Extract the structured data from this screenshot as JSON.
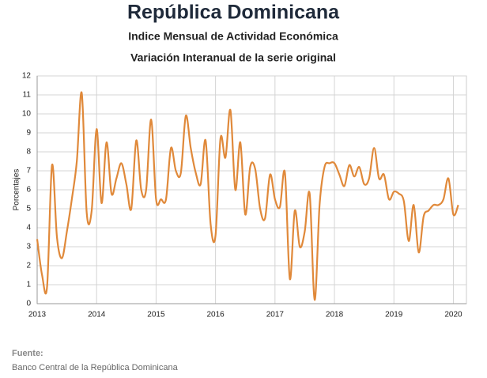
{
  "chart_data": {
    "type": "line",
    "title": "República Dominicana",
    "subtitle": "Indice Mensual de  Actividad Económica",
    "subtitle2": "Variación Interanual de la serie original",
    "y_label": "Porcentajes",
    "source_label": "Fuente:",
    "source": "Banco Central de la República Dominicana",
    "x": [
      2013,
      2013.083,
      2013.167,
      2013.25,
      2013.333,
      2013.417,
      2013.5,
      2013.583,
      2013.667,
      2013.75,
      2013.833,
      2013.917,
      2014,
      2014.083,
      2014.167,
      2014.25,
      2014.333,
      2014.417,
      2014.5,
      2014.583,
      2014.667,
      2014.75,
      2014.833,
      2014.917,
      2015,
      2015.083,
      2015.167,
      2015.25,
      2015.333,
      2015.417,
      2015.5,
      2015.583,
      2015.667,
      2015.75,
      2015.833,
      2015.917,
      2016,
      2016.083,
      2016.167,
      2016.25,
      2016.333,
      2016.417,
      2016.5,
      2016.583,
      2016.667,
      2016.75,
      2016.833,
      2016.917,
      2017,
      2017.083,
      2017.167,
      2017.25,
      2017.333,
      2017.417,
      2017.5,
      2017.583,
      2017.667,
      2017.75,
      2017.833,
      2017.917,
      2018,
      2018.083,
      2018.167,
      2018.25,
      2018.333,
      2018.417,
      2018.5,
      2018.583,
      2018.667,
      2018.75,
      2018.833,
      2018.917,
      2019,
      2019.083,
      2019.167,
      2019.25,
      2019.333,
      2019.417,
      2019.5,
      2019.583,
      2019.667,
      2019.75,
      2019.833,
      2019.917,
      2020,
      2020.083
    ],
    "series": [
      {
        "name": "Variación interanual",
        "color": "#e0893a",
        "values": [
          3.4,
          1.5,
          0.9,
          7.3,
          3.5,
          2.4,
          3.8,
          5.5,
          7.5,
          11.1,
          4.8,
          4.9,
          9.2,
          5.3,
          8.5,
          5.8,
          6.6,
          7.4,
          6.3,
          5.0,
          8.6,
          6.0,
          6.0,
          9.7,
          5.5,
          5.5,
          5.5,
          8.2,
          7.0,
          6.9,
          9.9,
          8.2,
          6.9,
          6.3,
          8.6,
          4.2,
          3.6,
          8.7,
          7.7,
          10.2,
          6.0,
          8.5,
          4.7,
          7.2,
          7.1,
          5.0,
          4.5,
          6.8,
          5.5,
          5.1,
          6.9,
          1.3,
          4.9,
          3.0,
          3.8,
          5.8,
          0.2,
          5.2,
          7.2,
          7.4,
          7.4,
          6.8,
          6.2,
          7.3,
          6.7,
          7.2,
          6.3,
          6.6,
          8.2,
          6.6,
          6.8,
          5.5,
          5.9,
          5.8,
          5.4,
          3.3,
          5.2,
          2.7,
          4.6,
          4.9,
          5.2,
          5.2,
          5.5,
          6.6,
          4.7,
          5.2
        ]
      }
    ],
    "xlim": [
      2013,
      2020.22
    ],
    "xticks": [
      2013,
      2014,
      2015,
      2016,
      2017,
      2018,
      2019,
      2020
    ],
    "ylim": [
      0,
      12
    ],
    "yticks": [
      0,
      1,
      2,
      3,
      4,
      5,
      6,
      7,
      8,
      9,
      10,
      11,
      12
    ],
    "grid": true
  }
}
